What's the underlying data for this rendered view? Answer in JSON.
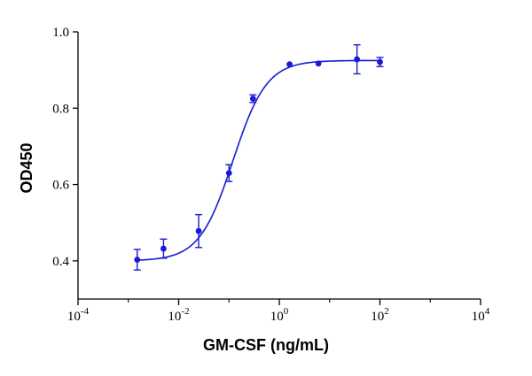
{
  "chart_data": {
    "type": "scatter",
    "xlabel": "GM-CSF (ng/mL)",
    "ylabel": "OD450",
    "x_scale": "log",
    "xlim": [
      0.0001,
      10000
    ],
    "ylim": [
      0.3,
      1.0
    ],
    "x_ticks": [
      {
        "value": 0.0001,
        "base": "10",
        "exp": "-4"
      },
      {
        "value": 0.01,
        "base": "10",
        "exp": "-2"
      },
      {
        "value": 1,
        "base": "10",
        "exp": "0"
      },
      {
        "value": 100,
        "base": "10",
        "exp": "2"
      },
      {
        "value": 10000,
        "base": "10",
        "exp": "4"
      }
    ],
    "y_ticks": [
      {
        "value": 0.4,
        "label": "0.4"
      },
      {
        "value": 0.6,
        "label": "0.6"
      },
      {
        "value": 0.8,
        "label": "0.8"
      },
      {
        "value": 1.0,
        "label": "1.0"
      }
    ],
    "color": "#1a1ad6",
    "series": [
      {
        "x": [
          0.0015,
          0.005,
          0.025,
          0.1,
          0.3,
          1.6,
          6.0,
          35,
          100
        ],
        "y": [
          0.403,
          0.432,
          0.478,
          0.63,
          0.825,
          0.915,
          0.917,
          0.928,
          0.921
        ],
        "error": [
          0.027,
          0.025,
          0.043,
          0.022,
          0.01,
          0.003,
          0.003,
          0.038,
          0.012
        ]
      }
    ],
    "fit": {
      "model": "4PL",
      "bottom": 0.4,
      "top": 0.925,
      "ec50": 0.12,
      "hill": 1.3,
      "x_range": [
        0.0015,
        100
      ]
    }
  }
}
